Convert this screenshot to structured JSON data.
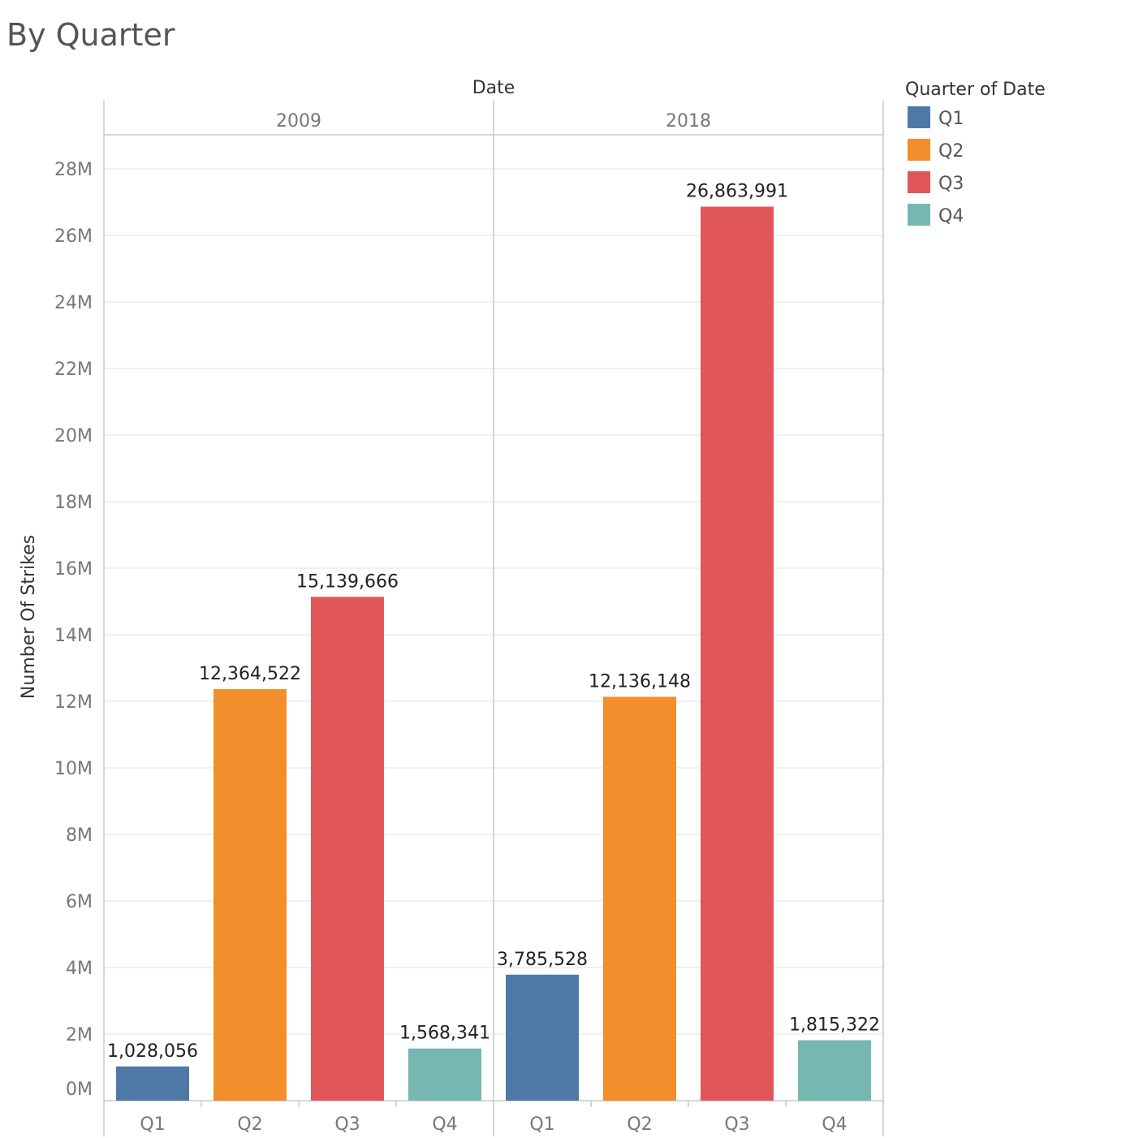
{
  "chart_data": {
    "type": "bar",
    "title": "By Quarter",
    "column_header": "Date",
    "ylabel": "Number Of Strikes",
    "ylim": [
      0,
      29000000
    ],
    "yticks": [
      0,
      2000000,
      4000000,
      6000000,
      8000000,
      10000000,
      12000000,
      14000000,
      16000000,
      18000000,
      20000000,
      22000000,
      24000000,
      26000000,
      28000000
    ],
    "ytick_labels": [
      "0M",
      "2M",
      "4M",
      "6M",
      "8M",
      "10M",
      "12M",
      "14M",
      "16M",
      "18M",
      "20M",
      "22M",
      "24M",
      "26M",
      "28M"
    ],
    "grid": true,
    "categories": [
      "Q1",
      "Q2",
      "Q3",
      "Q4"
    ],
    "legend": {
      "title": "Quarter of Date",
      "position": "right",
      "items": [
        {
          "label": "Q1",
          "color": "#4e79a7"
        },
        {
          "label": "Q2",
          "color": "#f28e2b"
        },
        {
          "label": "Q3",
          "color": "#e15759"
        },
        {
          "label": "Q4",
          "color": "#76b7b2"
        }
      ]
    },
    "panels": [
      {
        "year": "2009",
        "values": [
          1028056,
          12364522,
          15139666,
          1568341
        ],
        "labels": [
          "1,028,056",
          "12,364,522",
          "15,139,666",
          "1,568,341"
        ]
      },
      {
        "year": "2018",
        "values": [
          3785528,
          12136148,
          26863991,
          1815322
        ],
        "labels": [
          "3,785,528",
          "12,136,148",
          "26,863,991",
          "1,815,322"
        ]
      }
    ]
  }
}
